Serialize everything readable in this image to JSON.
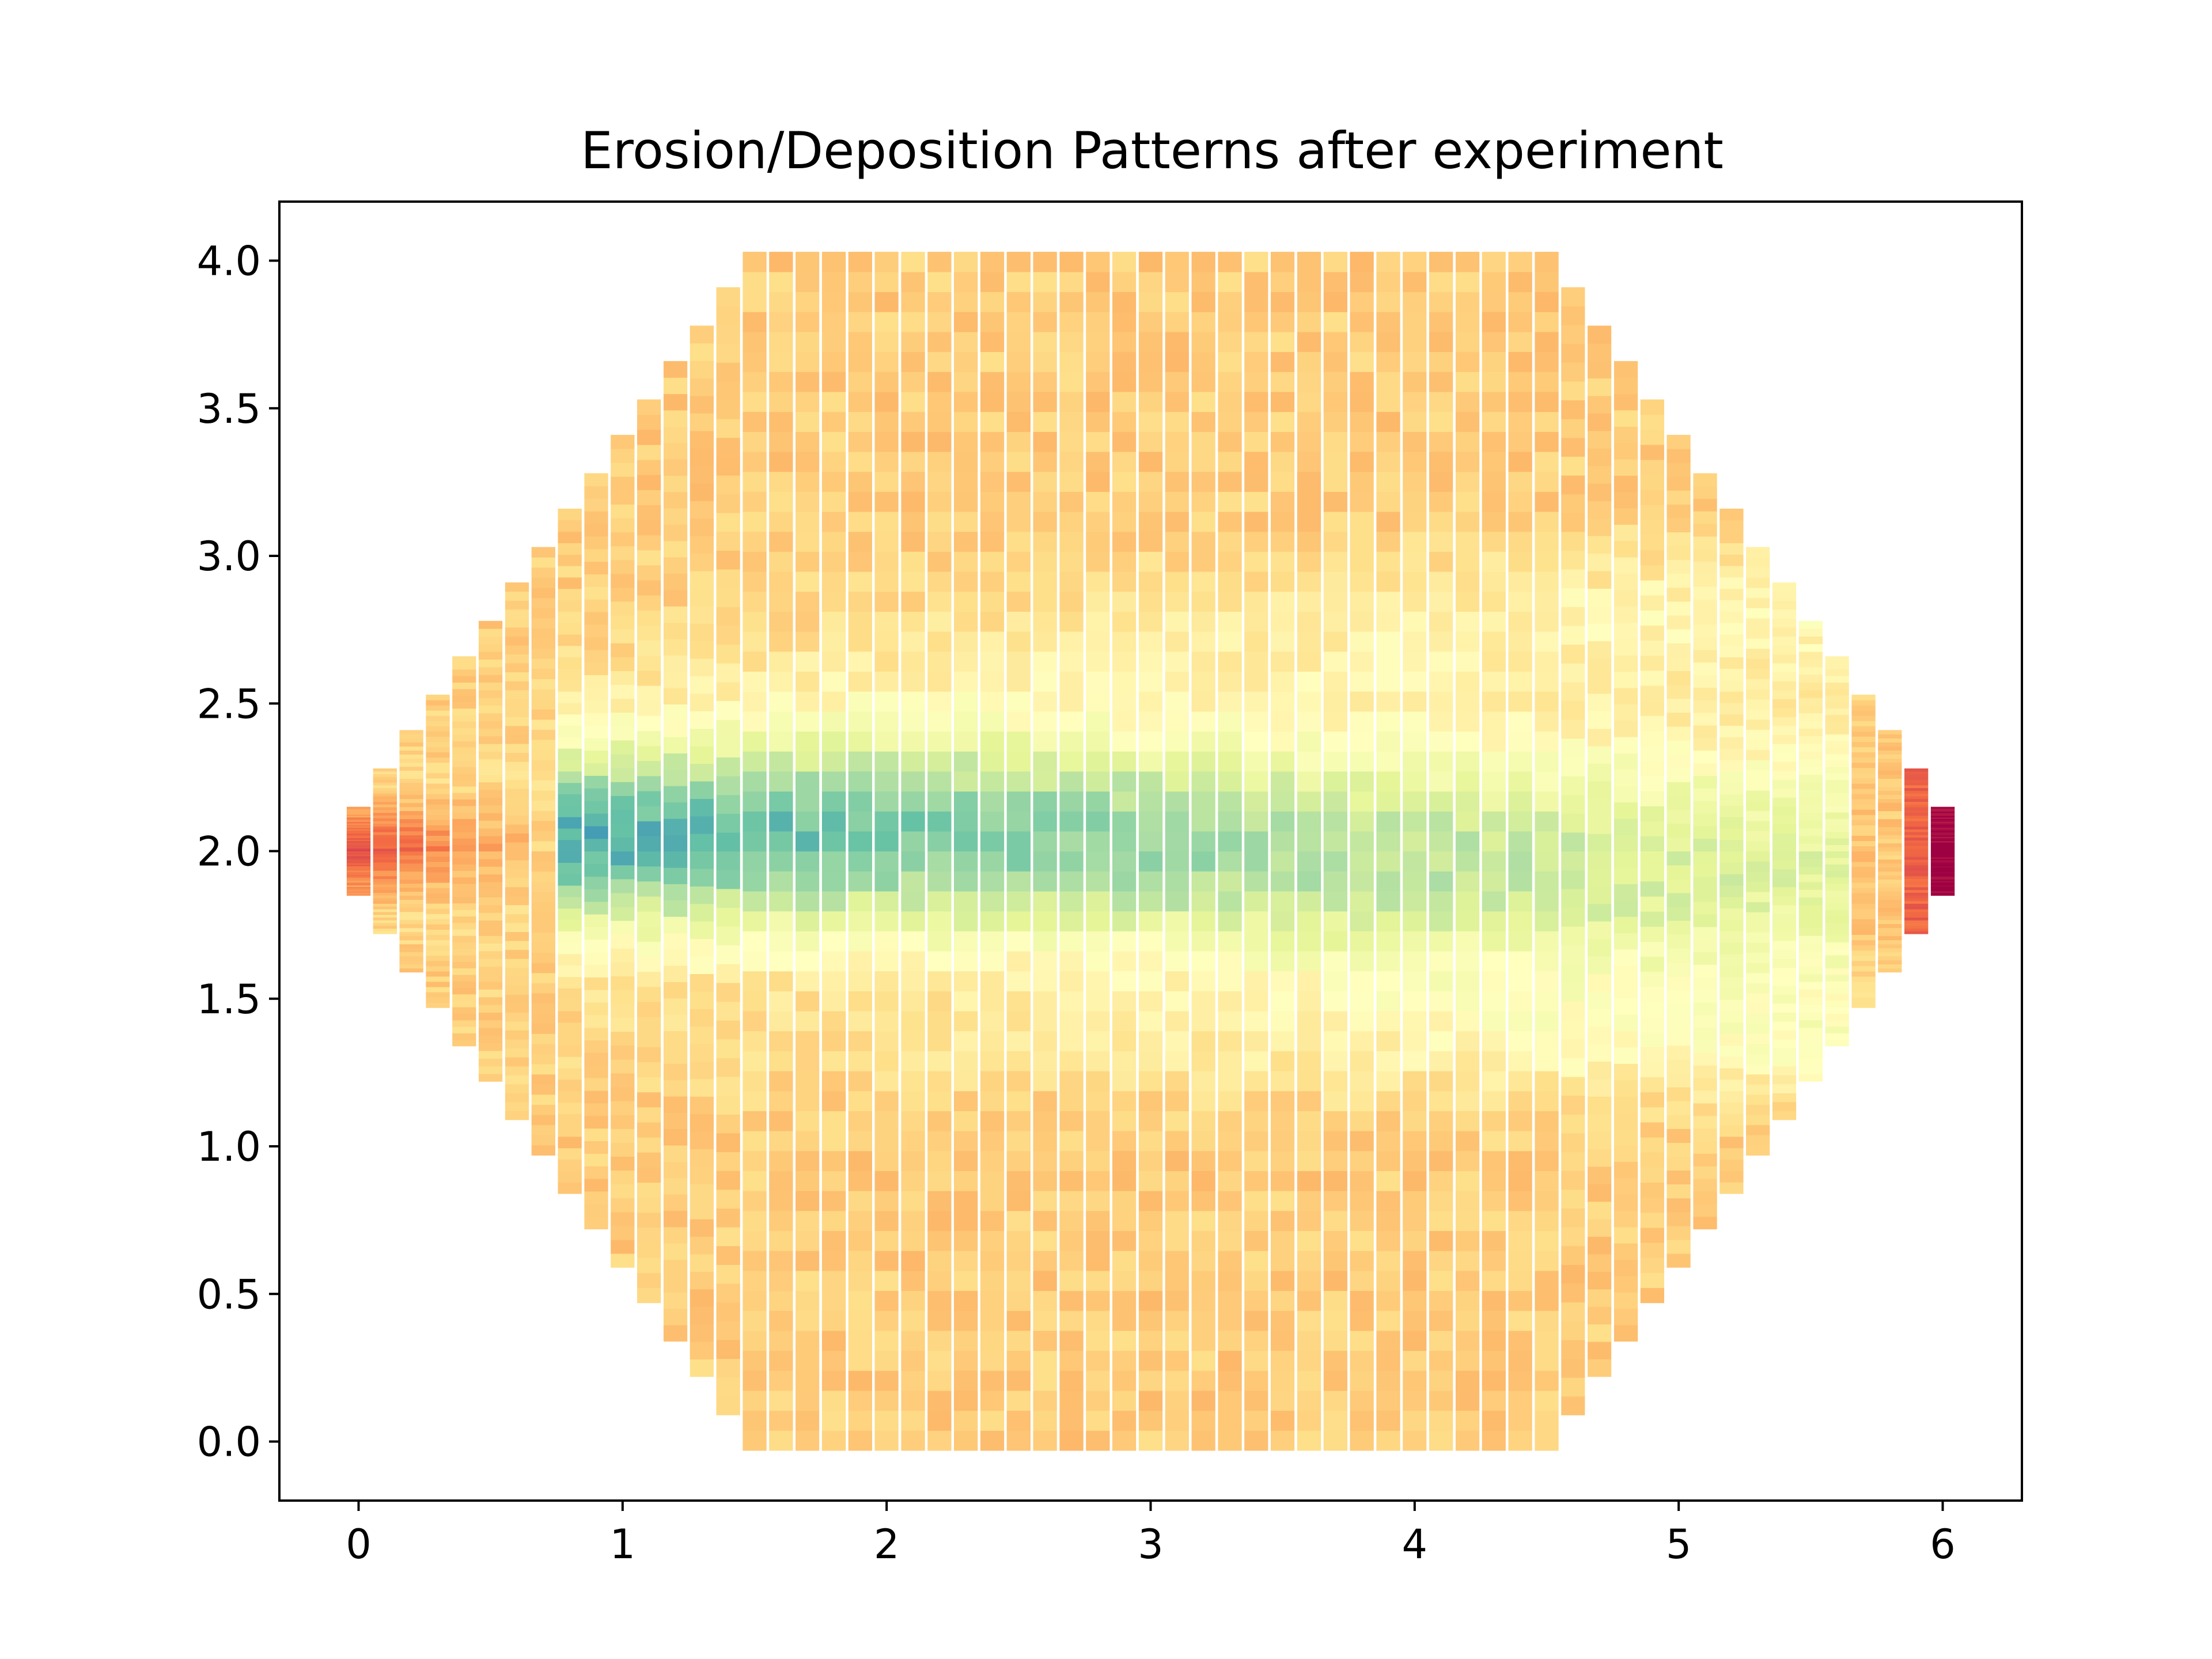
{
  "chart_data": {
    "type": "heatmap",
    "title": "Erosion/Deposition Patterns after experiment",
    "xlabel": "",
    "ylabel": "",
    "xlim": [
      -0.3,
      6.3
    ],
    "ylim": [
      -0.2,
      4.2
    ],
    "x_ticks": [
      "0",
      "1",
      "2",
      "3",
      "4",
      "5",
      "6"
    ],
    "y_ticks": [
      "0.0",
      "0.5",
      "1.0",
      "1.5",
      "2.0",
      "2.5",
      "3.0",
      "3.5",
      "4.0"
    ],
    "grid": false,
    "legend": "none",
    "colormap": "Spectral",
    "column_spacing": 0.1,
    "column_centers_x": [
      0.0,
      0.1,
      0.2,
      0.3,
      0.4,
      0.5,
      0.6,
      0.7,
      0.8,
      0.9,
      1.0,
      1.1,
      1.2,
      1.3,
      1.4,
      1.5,
      1.6,
      1.7,
      1.8,
      1.9,
      2.0,
      2.1,
      2.2,
      2.3,
      2.4,
      2.5,
      2.6,
      2.7,
      2.8,
      2.9,
      3.0,
      3.1,
      3.2,
      3.3,
      3.4,
      3.5,
      3.6,
      3.7,
      3.8,
      3.9,
      4.0,
      4.1,
      4.2,
      4.3,
      4.4,
      4.5,
      4.6,
      4.7,
      4.8,
      4.9,
      5.0,
      5.1,
      5.2,
      5.3,
      5.4,
      5.5,
      5.6,
      5.7,
      5.8,
      5.9,
      6.0
    ],
    "column_y_extents": [
      [
        1.85,
        2.15
      ],
      [
        1.72,
        2.28
      ],
      [
        1.59,
        2.41
      ],
      [
        1.47,
        2.53
      ],
      [
        1.34,
        2.66
      ],
      [
        1.22,
        2.78
      ],
      [
        1.09,
        2.91
      ],
      [
        0.97,
        3.03
      ],
      [
        0.84,
        3.16
      ],
      [
        0.72,
        3.28
      ],
      [
        0.59,
        3.41
      ],
      [
        0.47,
        3.53
      ],
      [
        0.34,
        3.66
      ],
      [
        0.22,
        3.78
      ],
      [
        0.09,
        3.91
      ],
      [
        -0.03,
        4.03
      ],
      [
        -0.03,
        4.03
      ],
      [
        -0.03,
        4.03
      ],
      [
        -0.03,
        4.03
      ],
      [
        -0.03,
        4.03
      ],
      [
        -0.03,
        4.03
      ],
      [
        -0.03,
        4.03
      ],
      [
        -0.03,
        4.03
      ],
      [
        -0.03,
        4.03
      ],
      [
        -0.03,
        4.03
      ],
      [
        -0.03,
        4.03
      ],
      [
        -0.03,
        4.03
      ],
      [
        -0.03,
        4.03
      ],
      [
        -0.03,
        4.03
      ],
      [
        -0.03,
        4.03
      ],
      [
        -0.03,
        4.03
      ],
      [
        -0.03,
        4.03
      ],
      [
        -0.03,
        4.03
      ],
      [
        -0.03,
        4.03
      ],
      [
        -0.03,
        4.03
      ],
      [
        -0.03,
        4.03
      ],
      [
        -0.03,
        4.03
      ],
      [
        -0.03,
        4.03
      ],
      [
        -0.03,
        4.03
      ],
      [
        -0.03,
        4.03
      ],
      [
        -0.03,
        4.03
      ],
      [
        -0.03,
        4.03
      ],
      [
        -0.03,
        4.03
      ],
      [
        -0.03,
        4.03
      ],
      [
        -0.03,
        4.03
      ],
      [
        -0.03,
        4.03
      ],
      [
        0.09,
        3.91
      ],
      [
        0.22,
        3.78
      ],
      [
        0.34,
        3.66
      ],
      [
        0.47,
        3.53
      ],
      [
        0.59,
        3.41
      ],
      [
        0.72,
        3.28
      ],
      [
        0.84,
        3.16
      ],
      [
        0.97,
        3.03
      ],
      [
        1.09,
        2.91
      ],
      [
        1.22,
        2.78
      ],
      [
        1.34,
        2.66
      ],
      [
        1.47,
        2.53
      ],
      [
        1.59,
        2.41
      ],
      [
        1.72,
        2.28
      ],
      [
        1.85,
        2.15
      ]
    ],
    "value_range": [
      -1,
      1
    ],
    "erosion_channel_center_y": 2.0
  }
}
